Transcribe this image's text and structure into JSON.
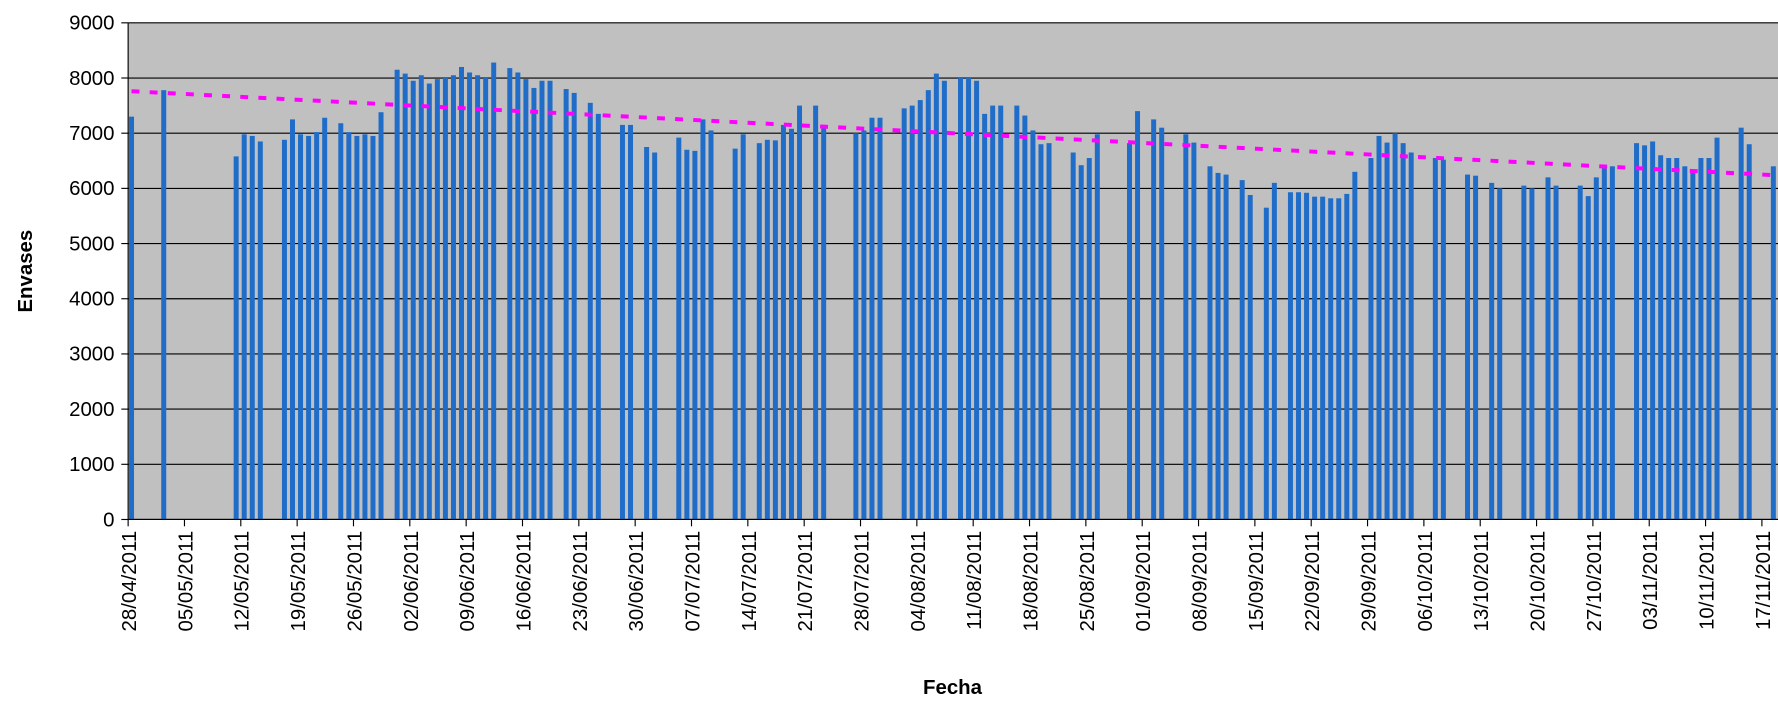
{
  "chart_data": {
    "type": "bar",
    "x_label": "Fecha",
    "y_label": "Envases",
    "color": "#1f6dc8",
    "plot_background": "#c0c0c0",
    "grid": true,
    "ylim": [
      0,
      9000
    ],
    "yticks": [
      0,
      1000,
      2000,
      3000,
      4000,
      5000,
      6000,
      7000,
      8000,
      9000
    ],
    "categories": [
      "28/04/2011",
      null,
      null,
      null,
      null,
      null,
      null,
      "05/05/2011",
      null,
      null,
      null,
      null,
      null,
      null,
      "12/05/2011",
      null,
      null,
      null,
      null,
      null,
      null,
      "19/05/2011",
      null,
      null,
      null,
      null,
      null,
      null,
      "26/05/2011",
      null,
      null,
      null,
      null,
      null,
      null,
      "02/06/2011",
      null,
      null,
      null,
      null,
      null,
      null,
      "09/06/2011",
      null,
      null,
      null,
      null,
      null,
      null,
      "16/06/2011",
      null,
      null,
      null,
      null,
      null,
      null,
      "23/06/2011",
      null,
      null,
      null,
      null,
      null,
      null,
      "30/06/2011",
      null,
      null,
      null,
      null,
      null,
      null,
      "07/07/2011",
      null,
      null,
      null,
      null,
      null,
      null,
      "14/07/2011",
      null,
      null,
      null,
      null,
      null,
      null,
      "21/07/2011",
      null,
      null,
      null,
      null,
      null,
      null,
      "28/07/2011",
      null,
      null,
      null,
      null,
      null,
      null,
      "04/08/2011",
      null,
      null,
      null,
      null,
      null,
      null,
      "11/08/2011",
      null,
      null,
      null,
      null,
      null,
      null,
      "18/08/2011",
      null,
      null,
      null,
      null,
      null,
      null,
      "25/08/2011",
      null,
      null,
      null,
      null,
      null,
      null,
      "01/09/2011",
      null,
      null,
      null,
      null,
      null,
      null,
      "08/09/2011",
      null,
      null,
      null,
      null,
      null,
      null,
      "15/09/2011",
      null,
      null,
      null,
      null,
      null,
      null,
      "22/09/2011",
      null,
      null,
      null,
      null,
      null,
      null,
      "29/09/2011",
      null,
      null,
      null,
      null,
      null,
      null,
      "06/10/2011",
      null,
      null,
      null,
      null,
      null,
      null,
      "13/10/2011",
      null,
      null,
      null,
      null,
      null,
      null,
      "20/10/2011",
      null,
      null,
      null,
      null,
      null,
      null,
      "27/10/2011",
      null,
      null,
      null,
      null,
      null,
      null,
      "03/11/2011",
      null,
      null,
      null,
      null,
      null,
      null,
      "10/11/2011",
      null,
      null,
      null,
      null,
      null,
      null,
      "17/11/2011",
      null
    ],
    "values": [
      7300,
      null,
      null,
      null,
      7780,
      null,
      null,
      null,
      null,
      null,
      null,
      null,
      null,
      6580,
      6980,
      6950,
      6850,
      null,
      null,
      6880,
      7250,
      6980,
      6950,
      7020,
      7280,
      null,
      7180,
      7020,
      6950,
      6980,
      6950,
      7380,
      null,
      8150,
      8080,
      7950,
      8050,
      7900,
      7980,
      8000,
      8050,
      8200,
      8100,
      8050,
      8000,
      8280,
      null,
      8180,
      8100,
      7980,
      7820,
      7950,
      7950,
      null,
      7800,
      7730,
      null,
      7550,
      7350,
      null,
      null,
      7150,
      7150,
      null,
      6750,
      6650,
      null,
      null,
      6920,
      6700,
      6680,
      7250,
      7050,
      null,
      null,
      6720,
      6980,
      null,
      6820,
      6880,
      6870,
      7150,
      7080,
      7500,
      null,
      7500,
      7150,
      null,
      null,
      null,
      7000,
      7050,
      7280,
      7280,
      null,
      null,
      7450,
      7500,
      7600,
      7780,
      8080,
      7950,
      null,
      8000,
      8000,
      7950,
      7350,
      7500,
      7500,
      null,
      7500,
      7320,
      7050,
      6800,
      6820,
      null,
      null,
      6650,
      6420,
      6550,
      6980,
      null,
      null,
      null,
      6820,
      7400,
      null,
      7250,
      7100,
      null,
      null,
      6980,
      6830,
      null,
      6400,
      6280,
      6250,
      null,
      6150,
      5880,
      null,
      5650,
      6100,
      null,
      5930,
      5930,
      5920,
      5850,
      5850,
      5820,
      5820,
      5900,
      6300,
      null,
      6550,
      6950,
      6830,
      7000,
      6820,
      6650,
      null,
      null,
      6550,
      6520,
      null,
      null,
      6250,
      6230,
      null,
      6100,
      6000,
      null,
      null,
      6050,
      6000,
      null,
      6200,
      6050,
      null,
      null,
      6050,
      5860,
      6200,
      6380,
      6400,
      null,
      null,
      6820,
      6780,
      6850,
      6600,
      6550,
      6550,
      6400,
      6300,
      6550,
      6550,
      6920,
      null,
      null,
      7100,
      6800,
      null,
      null,
      6400
    ],
    "trend": {
      "color": "#ff00ff",
      "values": [
        7760,
        6240
      ]
    }
  }
}
